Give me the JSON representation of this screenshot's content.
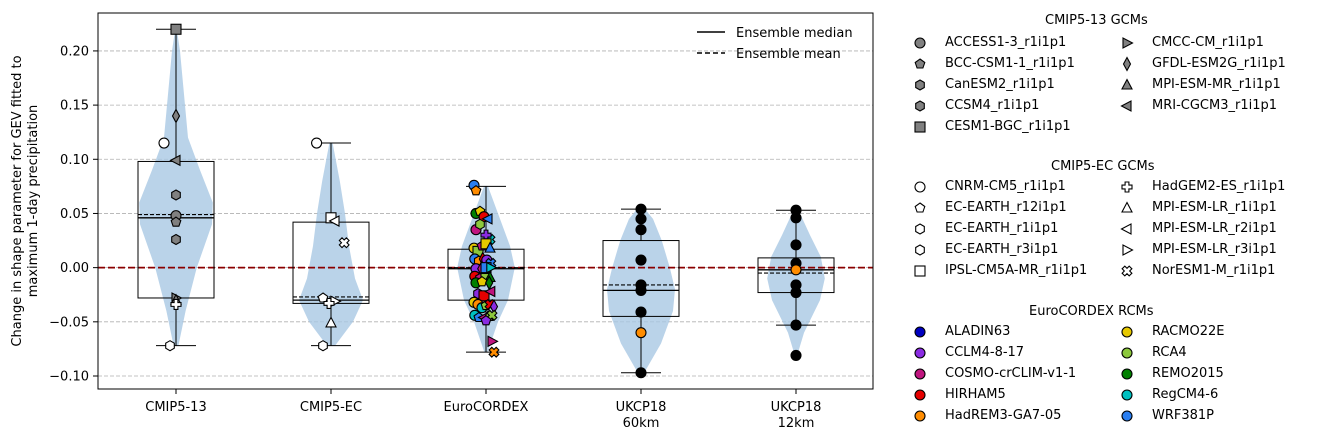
{
  "chart_data": {
    "type": "violin",
    "ylabel": "Change in shape parameter for GEV fitted to maximum 1-day precipitation",
    "ylim": [
      -0.112,
      0.235
    ],
    "yticks": [
      -0.1,
      -0.05,
      0.0,
      0.05,
      0.1,
      0.15,
      0.2
    ],
    "ytick_labels": [
      "−0.10",
      "−0.05",
      "0.00",
      "0.05",
      "0.10",
      "0.15",
      "0.20"
    ],
    "grid": "horizontal-dashed",
    "zero_line_color": "#8b0000",
    "violin_color": "#a9c8e3",
    "ensemble_legend": {
      "median_label": "Ensemble median",
      "mean_label": "Ensemble mean",
      "placement": "top-right"
    },
    "groups": [
      {
        "label": "CMIP5-13",
        "label2": "",
        "violin_min": -0.072,
        "violin_max": 0.22,
        "q1": -0.028,
        "q3": 0.098,
        "median": 0.046,
        "mean": 0.049,
        "whisker_low": -0.072,
        "whisker_high": 0.22,
        "violin_width": [
          [
            -0.072,
            0.06
          ],
          [
            -0.04,
            0.24
          ],
          [
            0.0,
            0.52
          ],
          [
            0.04,
            0.9
          ],
          [
            0.06,
            0.92
          ],
          [
            0.09,
            0.6
          ],
          [
            0.12,
            0.3
          ],
          [
            0.16,
            0.2
          ],
          [
            0.2,
            0.1
          ],
          [
            0.22,
            0.02
          ]
        ]
      },
      {
        "label": "CMIP5-EC",
        "label2": "",
        "violin_min": -0.072,
        "violin_max": 0.115,
        "q1": -0.033,
        "q3": 0.042,
        "median": -0.03,
        "mean": -0.027,
        "whisker_low": -0.072,
        "whisker_high": 0.115,
        "violin_width": [
          [
            -0.072,
            0.1
          ],
          [
            -0.05,
            0.55
          ],
          [
            -0.03,
            0.8
          ],
          [
            -0.01,
            0.6
          ],
          [
            0.02,
            0.45
          ],
          [
            0.05,
            0.35
          ],
          [
            0.08,
            0.22
          ],
          [
            0.115,
            0.04
          ]
        ]
      },
      {
        "label": "EuroCORDEX",
        "label2": "",
        "violin_min": -0.078,
        "violin_max": 0.075,
        "q1": -0.03,
        "q3": 0.017,
        "median": -0.001,
        "mean": 0.0,
        "whisker_low": -0.078,
        "whisker_high": 0.075,
        "violin_width": [
          [
            -0.078,
            0.04
          ],
          [
            -0.05,
            0.3
          ],
          [
            -0.03,
            0.55
          ],
          [
            0.0,
            0.72
          ],
          [
            0.02,
            0.6
          ],
          [
            0.05,
            0.3
          ],
          [
            0.075,
            0.05
          ]
        ]
      },
      {
        "label": "UKCP18",
        "label2": "60km",
        "violin_min": -0.097,
        "violin_max": 0.054,
        "q1": -0.045,
        "q3": 0.025,
        "median": -0.021,
        "mean": -0.016,
        "whisker_low": -0.097,
        "whisker_high": 0.054,
        "violin_width": [
          [
            -0.097,
            0.08
          ],
          [
            -0.07,
            0.5
          ],
          [
            -0.04,
            0.8
          ],
          [
            -0.02,
            0.85
          ],
          [
            0.0,
            0.72
          ],
          [
            0.025,
            0.52
          ],
          [
            0.045,
            0.3
          ],
          [
            0.054,
            0.1
          ]
        ]
      },
      {
        "label": "UKCP18",
        "label2": "12km",
        "violin_min": -0.081,
        "violin_max": 0.054,
        "q1": -0.023,
        "q3": 0.009,
        "median": -0.002,
        "mean": -0.005,
        "whisker_low": -0.053,
        "whisker_high": 0.053,
        "violin_width": [
          [
            -0.081,
            0.03
          ],
          [
            -0.06,
            0.2
          ],
          [
            -0.03,
            0.6
          ],
          [
            -0.01,
            0.72
          ],
          [
            0.01,
            0.62
          ],
          [
            0.03,
            0.35
          ],
          [
            0.054,
            0.05
          ]
        ]
      }
    ],
    "points": [
      {
        "g": 0,
        "dx": -0.3,
        "y": 0.115,
        "m": "circle",
        "c": "#ffffff"
      },
      {
        "g": 0,
        "dx": 0.0,
        "y": 0.22,
        "m": "square",
        "c": "#808080"
      },
      {
        "g": 0,
        "dx": 0.0,
        "y": 0.14,
        "m": "diamond",
        "c": "#808080"
      },
      {
        "g": 0,
        "dx": 0.0,
        "y": 0.099,
        "m": "tri-left",
        "c": "#808080"
      },
      {
        "g": 0,
        "dx": 0.0,
        "y": 0.067,
        "m": "hexagon",
        "c": "#808080"
      },
      {
        "g": 0,
        "dx": 0.0,
        "y": 0.048,
        "m": "circle",
        "c": "#808080"
      },
      {
        "g": 0,
        "dx": 0.0,
        "y": 0.042,
        "m": "pentagon",
        "c": "#808080"
      },
      {
        "g": 0,
        "dx": 0.0,
        "y": 0.026,
        "m": "hexagon",
        "c": "#808080"
      },
      {
        "g": 0,
        "dx": 0.0,
        "y": -0.028,
        "m": "tri-right",
        "c": "#808080"
      },
      {
        "g": 0,
        "dx": 0.0,
        "y": -0.03,
        "m": "tri-up",
        "c": "#808080"
      },
      {
        "g": 0,
        "dx": 0.0,
        "y": -0.034,
        "m": "plus",
        "c": "#ffffff"
      },
      {
        "g": 0,
        "dx": -0.15,
        "y": -0.072,
        "m": "hexagon",
        "c": "#ffffff"
      },
      {
        "g": 1,
        "dx": -0.36,
        "y": 0.115,
        "m": "circle",
        "c": "#ffffff"
      },
      {
        "g": 1,
        "dx": 0.0,
        "y": 0.046,
        "m": "square",
        "c": "#ffffff"
      },
      {
        "g": 1,
        "dx": 0.1,
        "y": 0.043,
        "m": "tri-left",
        "c": "#ffffff"
      },
      {
        "g": 1,
        "dx": 0.33,
        "y": 0.023,
        "m": "cross",
        "c": "#ffffff"
      },
      {
        "g": 1,
        "dx": -0.2,
        "y": -0.028,
        "m": "pentagon",
        "c": "#ffffff"
      },
      {
        "g": 1,
        "dx": 0.1,
        "y": -0.031,
        "m": "tri-right",
        "c": "#ffffff"
      },
      {
        "g": 1,
        "dx": -0.05,
        "y": -0.033,
        "m": "plus",
        "c": "#ffffff"
      },
      {
        "g": 1,
        "dx": 0.0,
        "y": -0.051,
        "m": "tri-up",
        "c": "#ffffff"
      },
      {
        "g": 1,
        "dx": -0.2,
        "y": -0.072,
        "m": "hexagon",
        "c": "#ffffff"
      },
      {
        "g": 2,
        "dx": -0.3,
        "y": 0.076,
        "m": "circle",
        "c": "#2a7ef0"
      },
      {
        "g": 2,
        "dx": -0.25,
        "y": 0.071,
        "m": "pentagon",
        "c": "#ff8c00"
      },
      {
        "g": 2,
        "dx": -0.25,
        "y": 0.05,
        "m": "circle",
        "c": "#008000"
      },
      {
        "g": 2,
        "dx": -0.15,
        "y": 0.052,
        "m": "pentagon",
        "c": "#e6c800"
      },
      {
        "g": 2,
        "dx": -0.05,
        "y": 0.047,
        "m": "circle",
        "c": "#e60000"
      },
      {
        "g": 2,
        "dx": 0.05,
        "y": 0.045,
        "m": "tri-left",
        "c": "#2a7ef0"
      },
      {
        "g": 2,
        "dx": 0.1,
        "y": 0.026,
        "m": "cross",
        "c": "#00c0c0"
      },
      {
        "g": 2,
        "dx": -0.25,
        "y": 0.035,
        "m": "circle",
        "c": "#c0157f"
      },
      {
        "g": 2,
        "dx": -0.15,
        "y": 0.04,
        "m": "hexagon",
        "c": "#8cc83c"
      },
      {
        "g": 2,
        "dx": 0.0,
        "y": 0.03,
        "m": "plus",
        "c": "#8a2be2"
      },
      {
        "g": 2,
        "dx": -0.3,
        "y": 0.018,
        "m": "circle",
        "c": "#e6c800"
      },
      {
        "g": 2,
        "dx": -0.2,
        "y": 0.015,
        "m": "square",
        "c": "#8cc83c"
      },
      {
        "g": 2,
        "dx": -0.1,
        "y": 0.02,
        "m": "pentagon",
        "c": "#c0157f"
      },
      {
        "g": 2,
        "dx": 0.0,
        "y": 0.022,
        "m": "square",
        "c": "#e6c800"
      },
      {
        "g": 2,
        "dx": 0.1,
        "y": 0.018,
        "m": "tri-up",
        "c": "#2a7ef0"
      },
      {
        "g": 2,
        "dx": -0.28,
        "y": 0.008,
        "m": "circle",
        "c": "#2a7ef0"
      },
      {
        "g": 2,
        "dx": -0.18,
        "y": 0.006,
        "m": "hexagon",
        "c": "#ff8c00"
      },
      {
        "g": 2,
        "dx": -0.08,
        "y": 0.008,
        "m": "diamond",
        "c": "#e60000"
      },
      {
        "g": 2,
        "dx": 0.02,
        "y": 0.007,
        "m": "circle",
        "c": "#8a2be2"
      },
      {
        "g": 2,
        "dx": 0.12,
        "y": 0.004,
        "m": "cross",
        "c": "#2a7ef0"
      },
      {
        "g": 2,
        "dx": -0.25,
        "y": -0.001,
        "m": "circle",
        "c": "#8a2be2"
      },
      {
        "g": 2,
        "dx": -0.12,
        "y": -0.001,
        "m": "diamond",
        "c": "#c0157f"
      },
      {
        "g": 2,
        "dx": 0.0,
        "y": 0.0,
        "m": "square",
        "c": "#2a7ef0"
      },
      {
        "g": 2,
        "dx": 0.12,
        "y": 0.0,
        "m": "tri-right",
        "c": "#00c0c0"
      },
      {
        "g": 2,
        "dx": -0.28,
        "y": -0.008,
        "m": "circle",
        "c": "#e60000"
      },
      {
        "g": 2,
        "dx": -0.15,
        "y": -0.01,
        "m": "hexagon",
        "c": "#c0157f"
      },
      {
        "g": 2,
        "dx": 0.0,
        "y": -0.01,
        "m": "square",
        "c": "#8cc83c"
      },
      {
        "g": 2,
        "dx": 0.1,
        "y": -0.009,
        "m": "tri-up",
        "c": "#008000"
      },
      {
        "g": 2,
        "dx": -0.25,
        "y": -0.014,
        "m": "circle",
        "c": "#008000"
      },
      {
        "g": 2,
        "dx": -0.1,
        "y": -0.013,
        "m": "pentagon",
        "c": "#e6c800"
      },
      {
        "g": 2,
        "dx": 0.08,
        "y": -0.014,
        "m": "diamond",
        "c": "#008000"
      },
      {
        "g": 2,
        "dx": -0.2,
        "y": -0.024,
        "m": "hexagon",
        "c": "#8a2be2"
      },
      {
        "g": 2,
        "dx": -0.05,
        "y": -0.026,
        "m": "square",
        "c": "#e60000"
      },
      {
        "g": 2,
        "dx": 0.12,
        "y": -0.022,
        "m": "tri-left",
        "c": "#c0157f"
      },
      {
        "g": 2,
        "dx": -0.3,
        "y": -0.032,
        "m": "circle",
        "c": "#e6c800"
      },
      {
        "g": 2,
        "dx": -0.2,
        "y": -0.034,
        "m": "circle",
        "c": "#ff8c00"
      },
      {
        "g": 2,
        "dx": -0.1,
        "y": -0.037,
        "m": "circle",
        "c": "#00c0c0"
      },
      {
        "g": 2,
        "dx": 0.0,
        "y": -0.035,
        "m": "pentagon",
        "c": "#8cc83c"
      },
      {
        "g": 2,
        "dx": 0.1,
        "y": -0.034,
        "m": "cross",
        "c": "#e60000"
      },
      {
        "g": 2,
        "dx": 0.2,
        "y": -0.036,
        "m": "diamond",
        "c": "#8a2be2"
      },
      {
        "g": 2,
        "dx": -0.28,
        "y": -0.044,
        "m": "circle",
        "c": "#00c0c0"
      },
      {
        "g": 2,
        "dx": -0.18,
        "y": -0.046,
        "m": "pentagon",
        "c": "#2a7ef0"
      },
      {
        "g": 2,
        "dx": -0.05,
        "y": -0.046,
        "m": "tri-left",
        "c": "#c0157f"
      },
      {
        "g": 2,
        "dx": 0.05,
        "y": -0.045,
        "m": "tri-up",
        "c": "#8cc83c"
      },
      {
        "g": 2,
        "dx": 0.15,
        "y": -0.044,
        "m": "cross",
        "c": "#8cc83c"
      },
      {
        "g": 2,
        "dx": 0.0,
        "y": -0.049,
        "m": "pentagon",
        "c": "#8a2be2"
      },
      {
        "g": 2,
        "dx": 0.15,
        "y": -0.068,
        "m": "tri-right",
        "c": "#c0157f"
      },
      {
        "g": 2,
        "dx": 0.2,
        "y": -0.078,
        "m": "cross",
        "c": "#ff8c00"
      },
      {
        "g": 3,
        "dx": 0.0,
        "y": 0.054,
        "m": "circle",
        "c": "#000000"
      },
      {
        "g": 3,
        "dx": 0.0,
        "y": 0.045,
        "m": "circle",
        "c": "#000000"
      },
      {
        "g": 3,
        "dx": 0.0,
        "y": 0.035,
        "m": "circle",
        "c": "#000000"
      },
      {
        "g": 3,
        "dx": 0.0,
        "y": 0.007,
        "m": "circle",
        "c": "#000000"
      },
      {
        "g": 3,
        "dx": 0.0,
        "y": -0.016,
        "m": "circle",
        "c": "#000000"
      },
      {
        "g": 3,
        "dx": 0.0,
        "y": -0.021,
        "m": "circle",
        "c": "#000000"
      },
      {
        "g": 3,
        "dx": 0.0,
        "y": -0.041,
        "m": "circle",
        "c": "#000000"
      },
      {
        "g": 3,
        "dx": 0.0,
        "y": -0.06,
        "m": "circle",
        "c": "#ff8c00"
      },
      {
        "g": 3,
        "dx": 0.0,
        "y": -0.097,
        "m": "circle",
        "c": "#000000"
      },
      {
        "g": 4,
        "dx": 0.0,
        "y": 0.053,
        "m": "circle",
        "c": "#000000"
      },
      {
        "g": 4,
        "dx": 0.0,
        "y": 0.046,
        "m": "circle",
        "c": "#000000"
      },
      {
        "g": 4,
        "dx": 0.0,
        "y": 0.021,
        "m": "circle",
        "c": "#000000"
      },
      {
        "g": 4,
        "dx": 0.0,
        "y": 0.004,
        "m": "circle",
        "c": "#000000"
      },
      {
        "g": 4,
        "dx": 0.0,
        "y": -0.002,
        "m": "circle",
        "c": "#ff8c00"
      },
      {
        "g": 4,
        "dx": 0.0,
        "y": -0.016,
        "m": "circle",
        "c": "#000000"
      },
      {
        "g": 4,
        "dx": 0.0,
        "y": -0.023,
        "m": "circle",
        "c": "#000000"
      },
      {
        "g": 4,
        "dx": 0.0,
        "y": -0.053,
        "m": "circle",
        "c": "#000000"
      },
      {
        "g": 4,
        "dx": 0.0,
        "y": -0.081,
        "m": "circle",
        "c": "#000000"
      }
    ]
  },
  "legend": {
    "cmip5_13": {
      "title": "CMIP5-13 GCMs",
      "items": [
        {
          "label": "ACCESS1-3_r1i1p1",
          "m": "circle",
          "c": "#808080"
        },
        {
          "label": "BCC-CSM1-1_r1i1p1",
          "m": "pentagon",
          "c": "#808080"
        },
        {
          "label": "CanESM2_r1i1p1",
          "m": "hexagon",
          "c": "#808080"
        },
        {
          "label": "CCSM4_r1i1p1",
          "m": "hexagon",
          "c": "#808080"
        },
        {
          "label": "CESM1-BGC_r1i1p1",
          "m": "square",
          "c": "#808080"
        },
        {
          "label": "CMCC-CM_r1i1p1",
          "m": "tri-right",
          "c": "#808080"
        },
        {
          "label": "GFDL-ESM2G_r1i1p1",
          "m": "diamond",
          "c": "#808080"
        },
        {
          "label": "MPI-ESM-MR_r1i1p1",
          "m": "tri-up",
          "c": "#808080"
        },
        {
          "label": "MRI-CGCM3_r1i1p1",
          "m": "tri-left",
          "c": "#808080"
        }
      ]
    },
    "cmip5_ec": {
      "title": "CMIP5-EC GCMs",
      "items": [
        {
          "label": "CNRM-CM5_r1i1p1",
          "m": "circle",
          "c": "#ffffff"
        },
        {
          "label": "EC-EARTH_r12i1p1",
          "m": "pentagon",
          "c": "#ffffff"
        },
        {
          "label": "EC-EARTH_r1i1p1",
          "m": "hexagon",
          "c": "#ffffff"
        },
        {
          "label": "EC-EARTH_r3i1p1",
          "m": "hexagon",
          "c": "#ffffff"
        },
        {
          "label": "IPSL-CM5A-MR_r1i1p1",
          "m": "square",
          "c": "#ffffff"
        },
        {
          "label": "HadGEM2-ES_r1i1p1",
          "m": "plus",
          "c": "#ffffff"
        },
        {
          "label": "MPI-ESM-LR_r1i1p1",
          "m": "tri-up",
          "c": "#ffffff"
        },
        {
          "label": "MPI-ESM-LR_r2i1p1",
          "m": "tri-left",
          "c": "#ffffff"
        },
        {
          "label": "MPI-ESM-LR_r3i1p1",
          "m": "tri-right",
          "c": "#ffffff"
        },
        {
          "label": "NorESM1-M_r1i1p1",
          "m": "cross",
          "c": "#ffffff"
        }
      ]
    },
    "eurocordex": {
      "title": "EuroCORDEX RCMs",
      "items": [
        {
          "label": "ALADIN63",
          "m": "circle",
          "c": "#0000c0"
        },
        {
          "label": "CCLM4-8-17",
          "m": "circle",
          "c": "#8a2be2"
        },
        {
          "label": "COSMO-crCLIM-v1-1",
          "m": "circle",
          "c": "#c0157f"
        },
        {
          "label": "HIRHAM5",
          "m": "circle",
          "c": "#e60000"
        },
        {
          "label": "HadREM3-GA7-05",
          "m": "circle",
          "c": "#ff8c00"
        },
        {
          "label": "RACMO22E",
          "m": "circle",
          "c": "#e6c800"
        },
        {
          "label": "RCA4",
          "m": "circle",
          "c": "#8cc83c"
        },
        {
          "label": "REMO2015",
          "m": "circle",
          "c": "#008000"
        },
        {
          "label": "RegCM4-6",
          "m": "circle",
          "c": "#00c0c0"
        },
        {
          "label": "WRF381P",
          "m": "circle",
          "c": "#2a7ef0"
        }
      ]
    }
  }
}
